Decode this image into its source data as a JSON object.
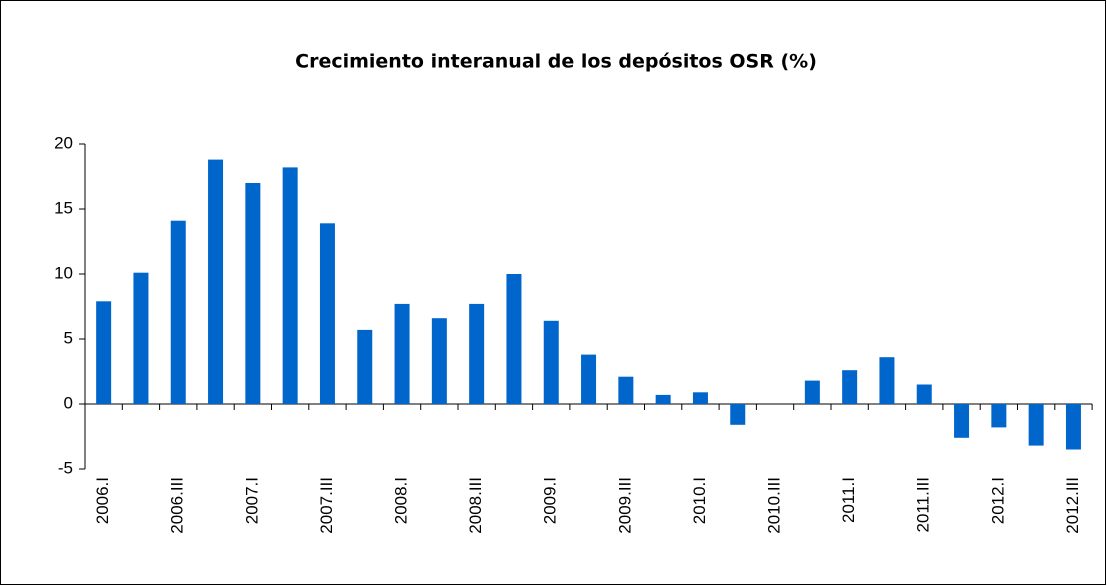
{
  "chart_data": {
    "type": "bar",
    "title": "Crecimiento interanual de los depósitos OSR (%)",
    "categories": [
      "2006.I",
      null,
      "2006.III",
      null,
      "2007.I",
      null,
      "2007.III",
      null,
      "2008.I",
      null,
      "2008.III",
      null,
      "2009.I",
      null,
      "2009.III",
      null,
      "2010.I",
      null,
      "2010.III",
      null,
      "2011.I",
      null,
      "2011.III",
      null,
      "2012.I",
      null,
      "2012.III"
    ],
    "values": [
      7.9,
      10.1,
      14.1,
      18.8,
      17.0,
      18.2,
      13.9,
      5.7,
      7.7,
      6.6,
      7.7,
      10.0,
      6.4,
      3.8,
      2.1,
      0.7,
      0.9,
      -1.6,
      0,
      1.8,
      2.6,
      3.6,
      1.5,
      -2.6,
      -1.8,
      -3.2,
      -3.5
    ],
    "color": "#0066cc",
    "ylim": [
      -5,
      20
    ],
    "yticks": [
      -5,
      0,
      5,
      10,
      15,
      20
    ]
  }
}
